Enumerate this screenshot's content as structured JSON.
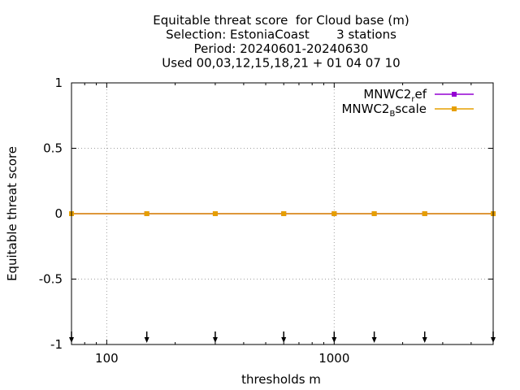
{
  "chart_data": {
    "type": "line",
    "title_lines": [
      "Equitable threat score  for Cloud base (m)",
      "Selection: EstoniaCoast       3 stations",
      "Period: 20240601-20240630",
      "Used 00,03,12,15,18,21 + 01 04 07 10"
    ],
    "xlabel": "thresholds m",
    "ylabel": "Equitable threat score",
    "x_scale": "log",
    "xlim": [
      70,
      5000
    ],
    "ylim": [
      -1,
      1
    ],
    "x_ticks": [
      100,
      1000
    ],
    "x_tick_labels": [
      "100",
      "1000"
    ],
    "y_ticks": [
      1,
      0.5,
      0,
      -0.5,
      -1
    ],
    "y_tick_labels": [
      "1",
      "0.5",
      "0",
      "-0.5",
      "-1"
    ],
    "grid": true,
    "legend_position": "top-right",
    "x": [
      70,
      150,
      300,
      600,
      1000,
      1500,
      2500,
      5000
    ],
    "series": [
      {
        "name": "MNWC2_ref",
        "legend_base": "MNWC2",
        "legend_sub": "r",
        "legend_rest": "ef",
        "color": "#9400d3",
        "values": [
          0,
          0,
          0,
          0,
          0,
          0,
          0,
          0
        ]
      },
      {
        "name": "MNWC2_Bscale",
        "legend_base": "MNWC2",
        "legend_sub": "B",
        "legend_rest": "scale",
        "color": "#e69f00",
        "values": [
          0,
          0,
          0,
          0,
          0,
          0,
          0,
          0
        ]
      }
    ],
    "arrow_markers_x": [
      70,
      150,
      300,
      600,
      1000,
      1500,
      2500,
      5000
    ]
  }
}
